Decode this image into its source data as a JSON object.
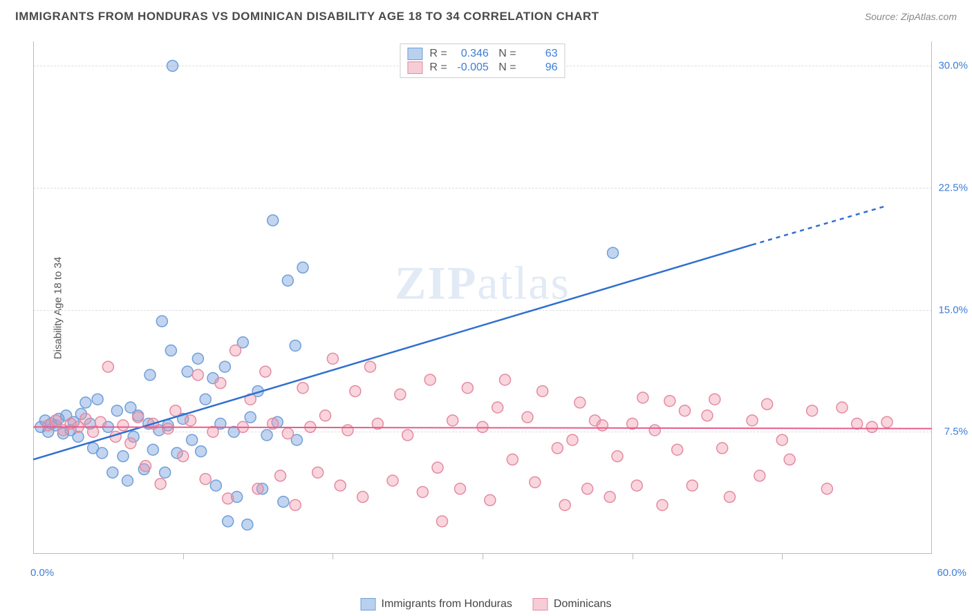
{
  "header": {
    "title": "IMMIGRANTS FROM HONDURAS VS DOMINICAN DISABILITY AGE 18 TO 34 CORRELATION CHART",
    "source": "Source: ZipAtlas.com"
  },
  "watermark": {
    "zip": "ZIP",
    "atlas": "atlas"
  },
  "chart": {
    "type": "scatter",
    "y_axis_label": "Disability Age 18 to 34",
    "xlim": [
      0,
      60
    ],
    "ylim": [
      0,
      31.5
    ],
    "yticks": [
      7.5,
      15.0,
      22.5,
      30.0
    ],
    "ytick_labels": [
      "7.5%",
      "15.0%",
      "22.5%",
      "30.0%"
    ],
    "xticks": [
      0,
      10,
      20,
      30,
      40,
      50,
      60
    ],
    "x_axis_tick_marks": [
      10,
      20,
      30,
      40,
      50
    ],
    "x_start_label": "0.0%",
    "x_end_label": "60.0%",
    "background_color": "#ffffff",
    "grid_color": "#dddddd",
    "grid_dash": true,
    "marker_radius": 8,
    "marker_stroke_width": 1.5,
    "series": [
      {
        "name": "Immigrants from Honduras",
        "fill_color": "rgba(120,160,220,0.45)",
        "stroke_color": "#6f9fd8",
        "swatch_fill": "#b9d0ee",
        "swatch_border": "#6f9fd8",
        "R": "0.346",
        "N": "63",
        "regression": {
          "x1": 0,
          "y1": 5.8,
          "x2": 48,
          "y2": 19.0,
          "x2_dash": 57,
          "y2_dash": 21.4,
          "color": "#2f6fd0",
          "width": 2.5
        },
        "points": [
          [
            0.5,
            7.8
          ],
          [
            0.8,
            8.2
          ],
          [
            1.0,
            7.5
          ],
          [
            1.2,
            8.0
          ],
          [
            1.5,
            7.9
          ],
          [
            1.7,
            8.3
          ],
          [
            2.0,
            7.4
          ],
          [
            2.2,
            8.5
          ],
          [
            2.5,
            7.6
          ],
          [
            2.7,
            8.1
          ],
          [
            3.0,
            7.2
          ],
          [
            3.2,
            8.6
          ],
          [
            3.5,
            9.3
          ],
          [
            3.8,
            8.0
          ],
          [
            4.0,
            6.5
          ],
          [
            4.3,
            9.5
          ],
          [
            4.6,
            6.2
          ],
          [
            5.0,
            7.8
          ],
          [
            5.3,
            5.0
          ],
          [
            5.6,
            8.8
          ],
          [
            6.0,
            6.0
          ],
          [
            6.3,
            4.5
          ],
          [
            6.7,
            7.2
          ],
          [
            7.0,
            8.5
          ],
          [
            7.4,
            5.2
          ],
          [
            7.7,
            8.0
          ],
          [
            7.8,
            11.0
          ],
          [
            8.0,
            6.4
          ],
          [
            8.4,
            7.6
          ],
          [
            8.6,
            14.3
          ],
          [
            8.8,
            5.0
          ],
          [
            9.0,
            7.9
          ],
          [
            9.2,
            12.5
          ],
          [
            9.3,
            30.0
          ],
          [
            9.6,
            6.2
          ],
          [
            10.0,
            8.3
          ],
          [
            10.3,
            11.2
          ],
          [
            10.6,
            7.0
          ],
          [
            11.0,
            12.0
          ],
          [
            11.2,
            6.3
          ],
          [
            11.5,
            9.5
          ],
          [
            12.0,
            10.8
          ],
          [
            12.2,
            4.2
          ],
          [
            12.5,
            8.0
          ],
          [
            12.8,
            11.5
          ],
          [
            13.0,
            2.0
          ],
          [
            13.4,
            7.5
          ],
          [
            13.6,
            3.5
          ],
          [
            14.0,
            13.0
          ],
          [
            14.3,
            1.8
          ],
          [
            14.5,
            8.4
          ],
          [
            15.0,
            10.0
          ],
          [
            15.3,
            4.0
          ],
          [
            15.6,
            7.3
          ],
          [
            16.0,
            20.5
          ],
          [
            16.3,
            8.1
          ],
          [
            16.7,
            3.2
          ],
          [
            17.0,
            16.8
          ],
          [
            17.5,
            12.8
          ],
          [
            17.6,
            7.0
          ],
          [
            18.0,
            17.6
          ],
          [
            38.7,
            18.5
          ],
          [
            6.5,
            9.0
          ]
        ]
      },
      {
        "name": "Dominicans",
        "fill_color": "rgba(240,150,170,0.40)",
        "stroke_color": "#e48aa0",
        "swatch_fill": "#f6cdd6",
        "swatch_border": "#e48aa0",
        "R": "-0.005",
        "N": "96",
        "regression": {
          "x1": 0,
          "y1": 7.8,
          "x2": 60,
          "y2": 7.7,
          "color": "#e85a8a",
          "width": 2
        },
        "points": [
          [
            1.0,
            7.9
          ],
          [
            1.5,
            8.2
          ],
          [
            2.0,
            7.6
          ],
          [
            2.5,
            8.0
          ],
          [
            3.0,
            7.8
          ],
          [
            3.5,
            8.3
          ],
          [
            4.0,
            7.5
          ],
          [
            4.5,
            8.1
          ],
          [
            5.0,
            11.5
          ],
          [
            5.5,
            7.2
          ],
          [
            6.0,
            7.9
          ],
          [
            6.5,
            6.8
          ],
          [
            7.0,
            8.4
          ],
          [
            7.5,
            5.4
          ],
          [
            8.0,
            8.0
          ],
          [
            8.5,
            4.3
          ],
          [
            9.0,
            7.7
          ],
          [
            9.5,
            8.8
          ],
          [
            10.0,
            6.0
          ],
          [
            10.5,
            8.2
          ],
          [
            11.0,
            11.0
          ],
          [
            11.5,
            4.6
          ],
          [
            12.0,
            7.5
          ],
          [
            12.5,
            10.5
          ],
          [
            13.0,
            3.4
          ],
          [
            13.5,
            12.5
          ],
          [
            14.0,
            7.8
          ],
          [
            14.5,
            9.5
          ],
          [
            15.0,
            4.0
          ],
          [
            15.5,
            11.2
          ],
          [
            16.0,
            8.0
          ],
          [
            16.5,
            4.8
          ],
          [
            17.0,
            7.4
          ],
          [
            17.5,
            3.0
          ],
          [
            18.0,
            10.2
          ],
          [
            18.5,
            7.8
          ],
          [
            19.0,
            5.0
          ],
          [
            19.5,
            8.5
          ],
          [
            20.0,
            12.0
          ],
          [
            20.5,
            4.2
          ],
          [
            21.0,
            7.6
          ],
          [
            21.5,
            10.0
          ],
          [
            22.0,
            3.5
          ],
          [
            22.5,
            11.5
          ],
          [
            23.0,
            8.0
          ],
          [
            24.0,
            4.5
          ],
          [
            24.5,
            9.8
          ],
          [
            25.0,
            7.3
          ],
          [
            26.0,
            3.8
          ],
          [
            26.5,
            10.7
          ],
          [
            27.0,
            5.3
          ],
          [
            27.3,
            2.0
          ],
          [
            28.0,
            8.2
          ],
          [
            28.5,
            4.0
          ],
          [
            29.0,
            10.2
          ],
          [
            30.0,
            7.8
          ],
          [
            30.5,
            3.3
          ],
          [
            31.0,
            9.0
          ],
          [
            31.5,
            10.7
          ],
          [
            32.0,
            5.8
          ],
          [
            33.0,
            8.4
          ],
          [
            33.5,
            4.4
          ],
          [
            34.0,
            10.0
          ],
          [
            35.0,
            6.5
          ],
          [
            35.5,
            3.0
          ],
          [
            36.0,
            7.0
          ],
          [
            36.5,
            9.3
          ],
          [
            37.0,
            4.0
          ],
          [
            37.5,
            8.2
          ],
          [
            38.0,
            7.9
          ],
          [
            38.5,
            3.5
          ],
          [
            39.0,
            6.0
          ],
          [
            40.0,
            8.0
          ],
          [
            40.3,
            4.2
          ],
          [
            40.7,
            9.6
          ],
          [
            41.5,
            7.6
          ],
          [
            42.0,
            3.0
          ],
          [
            42.5,
            9.4
          ],
          [
            43.0,
            6.4
          ],
          [
            43.5,
            8.8
          ],
          [
            44.0,
            4.2
          ],
          [
            45.0,
            8.5
          ],
          [
            45.5,
            9.5
          ],
          [
            46.0,
            6.5
          ],
          [
            46.5,
            3.5
          ],
          [
            48.0,
            8.2
          ],
          [
            48.5,
            4.8
          ],
          [
            49.0,
            9.2
          ],
          [
            50.0,
            7.0
          ],
          [
            50.5,
            5.8
          ],
          [
            52.0,
            8.8
          ],
          [
            53.0,
            4.0
          ],
          [
            54.0,
            9.0
          ],
          [
            55.0,
            8.0
          ],
          [
            56.0,
            7.8
          ],
          [
            57.0,
            8.1
          ]
        ]
      }
    ],
    "bottom_legend": [
      {
        "label": "Immigrants from Honduras",
        "fill": "#b9d0ee",
        "border": "#6f9fd8"
      },
      {
        "label": "Dominicans",
        "fill": "#f6cdd6",
        "border": "#e48aa0"
      }
    ]
  }
}
